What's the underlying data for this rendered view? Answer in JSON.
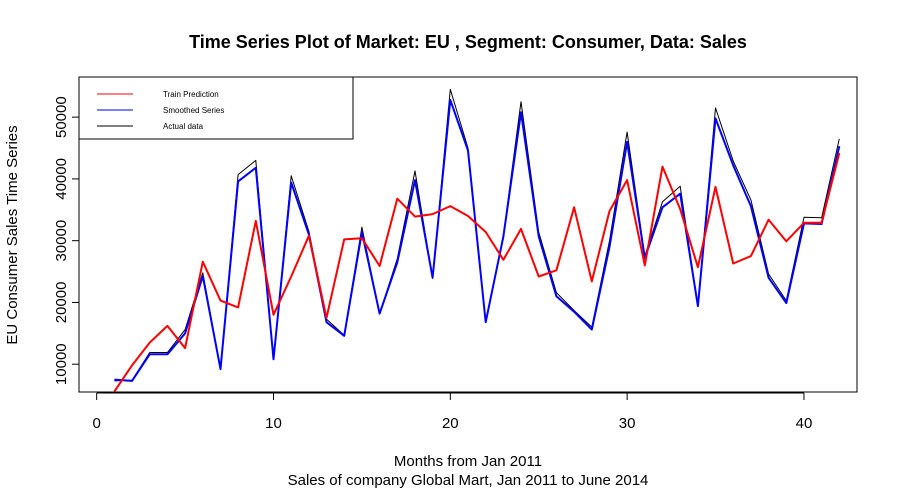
{
  "chart_data": {
    "type": "line",
    "title": "Time Series Plot of Market: EU , Segment: Consumer, Data: Sales",
    "xlabel": "Months from Jan 2011",
    "xlabel2": "Sales of company Global Mart, Jan 2011 to June 2014",
    "ylabel": "EU Consumer Sales Time Series",
    "xlim": [
      -1,
      43
    ],
    "ylim": [
      5500,
      56500
    ],
    "x_ticks": [
      0,
      10,
      20,
      30,
      40
    ],
    "y_ticks": [
      10000,
      20000,
      30000,
      40000,
      50000
    ],
    "grid": false,
    "legend_position": "top-left",
    "x": [
      1,
      2,
      3,
      4,
      5,
      6,
      7,
      8,
      9,
      10,
      11,
      12,
      13,
      14,
      15,
      16,
      17,
      18,
      19,
      20,
      21,
      22,
      23,
      24,
      25,
      26,
      27,
      28,
      29,
      30,
      31,
      32,
      33,
      34,
      35,
      36,
      37,
      38,
      39,
      40,
      41,
      42
    ],
    "series": [
      {
        "name": "Train Prediction",
        "color": "#ff0000",
        "width": 2,
        "x": [
          1,
          2,
          3,
          4,
          5,
          6,
          7,
          8,
          9,
          10,
          11,
          12,
          13,
          14,
          15,
          16,
          17,
          18,
          19,
          20,
          21,
          22,
          23,
          24,
          25,
          26,
          27,
          28,
          29,
          30,
          31,
          32,
          33,
          34,
          35,
          36,
          37,
          38,
          39,
          40,
          41,
          42
        ],
        "values": [
          5600,
          9800,
          13500,
          16200,
          12600,
          26600,
          20300,
          19200,
          33200,
          18000,
          24200,
          30800,
          17500,
          30200,
          30400,
          25900,
          36800,
          33900,
          34300,
          35600,
          34000,
          31400,
          26900,
          31900,
          24200,
          25200,
          35400,
          23400,
          34800,
          39800,
          26000,
          42000,
          35100,
          25700,
          38700,
          26300,
          27500,
          33400,
          29900,
          32900,
          32900,
          44200
        ]
      },
      {
        "name": "Smoothed Series",
        "color": "#0000ff",
        "width": 2,
        "x": [
          1,
          2,
          3,
          4,
          5,
          6,
          7,
          8,
          9,
          10,
          11,
          12,
          13,
          14,
          15,
          16,
          17,
          18,
          19,
          20,
          21,
          22,
          23,
          24,
          25,
          26,
          27,
          28,
          29,
          30,
          31,
          32,
          33,
          34,
          35,
          36,
          37,
          38,
          39,
          40,
          41,
          42
        ],
        "values": [
          7500,
          7300,
          11600,
          11600,
          15000,
          24300,
          9200,
          39600,
          41800,
          10800,
          39400,
          31000,
          16800,
          14600,
          31400,
          18200,
          26500,
          39800,
          24000,
          52800,
          44600,
          16800,
          30700,
          50800,
          30700,
          21000,
          18500,
          15600,
          29000,
          46000,
          27200,
          35400,
          37600,
          19400,
          49800,
          42200,
          35600,
          24000,
          19900,
          32800,
          32700,
          45300
        ]
      },
      {
        "name": "Actual data",
        "color": "#000000",
        "width": 1,
        "x": [
          1,
          2,
          3,
          4,
          5,
          6,
          7,
          8,
          9,
          10,
          11,
          12,
          13,
          14,
          15,
          16,
          17,
          18,
          19,
          20,
          21,
          22,
          23,
          24,
          25,
          26,
          27,
          28,
          29,
          30,
          31,
          32,
          33,
          34,
          35,
          36,
          37,
          38,
          39,
          40,
          41,
          42
        ],
        "values": [
          7300,
          7400,
          11900,
          11900,
          15600,
          24800,
          9300,
          40700,
          43000,
          10800,
          40500,
          31500,
          17300,
          14700,
          32200,
          18200,
          27100,
          41300,
          23900,
          54500,
          45000,
          16800,
          30900,
          52500,
          31400,
          21600,
          18700,
          16000,
          30000,
          47600,
          27500,
          36300,
          38800,
          19400,
          51500,
          42900,
          36600,
          24600,
          20300,
          33800,
          33700,
          46500
        ]
      }
    ]
  }
}
